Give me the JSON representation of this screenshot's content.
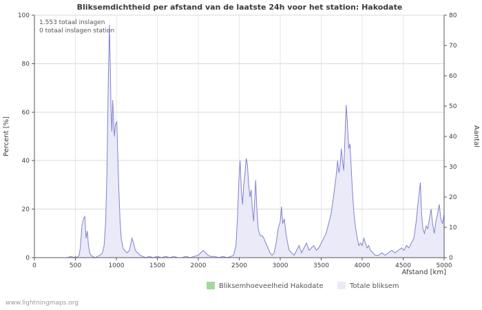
{
  "chart_data": {
    "type": "area",
    "title": "Bliksemdichtheid per afstand van de laatste 24h voor het station: Hakodate",
    "xlabel": "Afstand  [km]",
    "ylabel_left": "Percent  [%]",
    "ylabel_right": "Aantal",
    "xlim": [
      0,
      5000
    ],
    "ylim_left": [
      0,
      100
    ],
    "ylim_right": [
      0,
      80
    ],
    "x_ticks": [
      0,
      500,
      1000,
      1500,
      2000,
      2500,
      3000,
      3500,
      4000,
      4500,
      5000
    ],
    "y_ticks_left": [
      0,
      20,
      40,
      60,
      80,
      100
    ],
    "y_ticks_right": [
      0,
      10,
      20,
      30,
      40,
      50,
      60,
      70,
      80
    ],
    "grid": true,
    "legend_position": "bottom",
    "annotations": {
      "line1": "1.553 totaal inslagen",
      "line2": "0 totaal inslagen station"
    },
    "watermark": "www.lightningmaps.org",
    "colors": {
      "station_fill": "#a8d6a0",
      "total_line": "#8080d2",
      "total_fill": "#eaeaf8"
    },
    "series": [
      {
        "name": "Bliksemhoeveelheid Hakodate",
        "fill_color": "#a8d6a0",
        "line_color": "#a8d6a0",
        "points": []
      },
      {
        "name": "Totale bliksem",
        "fill_color": "#eaeaf8",
        "line_color": "#8080d2",
        "points": [
          [
            0,
            0
          ],
          [
            50,
            0
          ],
          [
            100,
            0
          ],
          [
            150,
            0
          ],
          [
            200,
            0
          ],
          [
            250,
            0
          ],
          [
            300,
            0
          ],
          [
            350,
            0
          ],
          [
            400,
            0
          ],
          [
            450,
            0.5
          ],
          [
            480,
            0
          ],
          [
            500,
            0.5
          ],
          [
            520,
            0
          ],
          [
            545,
            1
          ],
          [
            560,
            4
          ],
          [
            580,
            13
          ],
          [
            600,
            16
          ],
          [
            615,
            17
          ],
          [
            630,
            8
          ],
          [
            645,
            11
          ],
          [
            660,
            5
          ],
          [
            675,
            2
          ],
          [
            690,
            1
          ],
          [
            710,
            0.5
          ],
          [
            740,
            0
          ],
          [
            770,
            0.5
          ],
          [
            800,
            1
          ],
          [
            830,
            2
          ],
          [
            850,
            5
          ],
          [
            870,
            15
          ],
          [
            885,
            35
          ],
          [
            900,
            70
          ],
          [
            915,
            96
          ],
          [
            925,
            80
          ],
          [
            935,
            60
          ],
          [
            945,
            52
          ],
          [
            955,
            65
          ],
          [
            965,
            58
          ],
          [
            975,
            50
          ],
          [
            990,
            55
          ],
          [
            1005,
            56
          ],
          [
            1015,
            45
          ],
          [
            1030,
            28
          ],
          [
            1045,
            15
          ],
          [
            1060,
            8
          ],
          [
            1080,
            4
          ],
          [
            1100,
            3
          ],
          [
            1130,
            2
          ],
          [
            1160,
            3
          ],
          [
            1190,
            8
          ],
          [
            1210,
            6
          ],
          [
            1230,
            3
          ],
          [
            1260,
            2
          ],
          [
            1290,
            1
          ],
          [
            1320,
            0.5
          ],
          [
            1360,
            0
          ],
          [
            1400,
            0.5
          ],
          [
            1450,
            0
          ],
          [
            1500,
            0.5
          ],
          [
            1550,
            0
          ],
          [
            1600,
            0.5
          ],
          [
            1650,
            0
          ],
          [
            1700,
            0.5
          ],
          [
            1750,
            0
          ],
          [
            1800,
            0
          ],
          [
            1850,
            0.5
          ],
          [
            1900,
            0
          ],
          [
            1950,
            0.5
          ],
          [
            2000,
            1
          ],
          [
            2030,
            2
          ],
          [
            2060,
            3
          ],
          [
            2090,
            2
          ],
          [
            2120,
            1
          ],
          [
            2150,
            0.5
          ],
          [
            2200,
            0.5
          ],
          [
            2250,
            0
          ],
          [
            2300,
            0.5
          ],
          [
            2350,
            0
          ],
          [
            2400,
            0.5
          ],
          [
            2430,
            1
          ],
          [
            2460,
            5
          ],
          [
            2480,
            18
          ],
          [
            2495,
            32
          ],
          [
            2510,
            40
          ],
          [
            2525,
            28
          ],
          [
            2540,
            22
          ],
          [
            2555,
            30
          ],
          [
            2570,
            35
          ],
          [
            2585,
            41
          ],
          [
            2600,
            38
          ],
          [
            2615,
            30
          ],
          [
            2630,
            25
          ],
          [
            2645,
            28
          ],
          [
            2660,
            20
          ],
          [
            2675,
            15
          ],
          [
            2690,
            25
          ],
          [
            2700,
            32
          ],
          [
            2715,
            20
          ],
          [
            2730,
            12
          ],
          [
            2745,
            10
          ],
          [
            2760,
            9
          ],
          [
            2780,
            9
          ],
          [
            2800,
            8
          ],
          [
            2825,
            6
          ],
          [
            2850,
            4
          ],
          [
            2875,
            2
          ],
          [
            2900,
            1
          ],
          [
            2925,
            2
          ],
          [
            2950,
            6
          ],
          [
            2975,
            12
          ],
          [
            3000,
            15
          ],
          [
            3015,
            21
          ],
          [
            3030,
            14
          ],
          [
            3050,
            16
          ],
          [
            3070,
            10
          ],
          [
            3090,
            6
          ],
          [
            3110,
            3
          ],
          [
            3140,
            2
          ],
          [
            3170,
            1
          ],
          [
            3200,
            3
          ],
          [
            3230,
            5
          ],
          [
            3260,
            2
          ],
          [
            3290,
            4
          ],
          [
            3320,
            6
          ],
          [
            3350,
            3
          ],
          [
            3380,
            4
          ],
          [
            3410,
            5
          ],
          [
            3440,
            3
          ],
          [
            3470,
            4
          ],
          [
            3500,
            6
          ],
          [
            3530,
            8
          ],
          [
            3560,
            10
          ],
          [
            3590,
            14
          ],
          [
            3620,
            18
          ],
          [
            3650,
            25
          ],
          [
            3680,
            33
          ],
          [
            3700,
            40
          ],
          [
            3715,
            35
          ],
          [
            3730,
            38
          ],
          [
            3745,
            45
          ],
          [
            3760,
            40
          ],
          [
            3775,
            36
          ],
          [
            3790,
            50
          ],
          [
            3805,
            63
          ],
          [
            3820,
            55
          ],
          [
            3835,
            45
          ],
          [
            3850,
            47
          ],
          [
            3865,
            38
          ],
          [
            3880,
            28
          ],
          [
            3900,
            18
          ],
          [
            3920,
            12
          ],
          [
            3940,
            8
          ],
          [
            3960,
            5
          ],
          [
            3980,
            6
          ],
          [
            4000,
            5
          ],
          [
            4020,
            8
          ],
          [
            4040,
            6
          ],
          [
            4060,
            4
          ],
          [
            4080,
            5
          ],
          [
            4100,
            3
          ],
          [
            4130,
            2
          ],
          [
            4160,
            1
          ],
          [
            4200,
            1
          ],
          [
            4240,
            2
          ],
          [
            4280,
            1
          ],
          [
            4320,
            2
          ],
          [
            4360,
            3
          ],
          [
            4400,
            2
          ],
          [
            4440,
            3
          ],
          [
            4480,
            4
          ],
          [
            4510,
            3
          ],
          [
            4540,
            5
          ],
          [
            4570,
            4
          ],
          [
            4600,
            6
          ],
          [
            4630,
            8
          ],
          [
            4660,
            15
          ],
          [
            4690,
            25
          ],
          [
            4710,
            31
          ],
          [
            4725,
            18
          ],
          [
            4740,
            12
          ],
          [
            4760,
            10
          ],
          [
            4780,
            13
          ],
          [
            4800,
            12
          ],
          [
            4820,
            16
          ],
          [
            4840,
            20
          ],
          [
            4860,
            14
          ],
          [
            4880,
            10
          ],
          [
            4900,
            15
          ],
          [
            4920,
            18
          ],
          [
            4940,
            22
          ],
          [
            4960,
            16
          ],
          [
            4980,
            14
          ],
          [
            5000,
            18
          ]
        ]
      }
    ]
  }
}
